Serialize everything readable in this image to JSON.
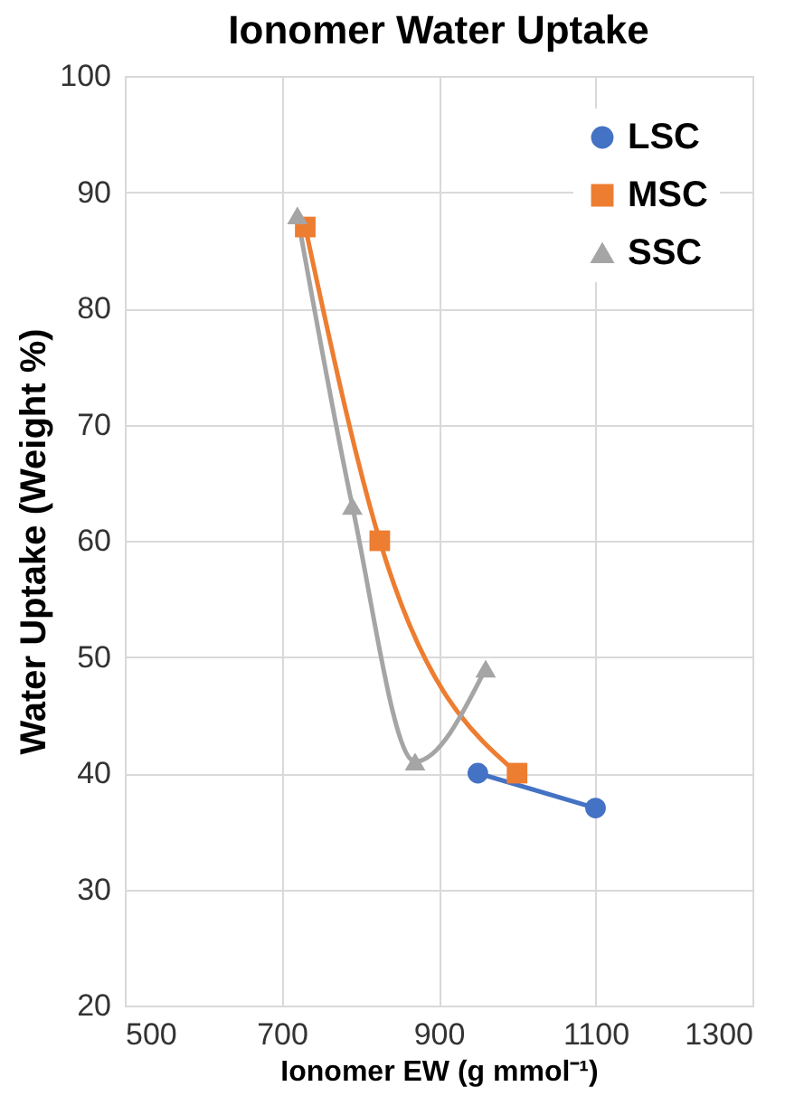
{
  "chart_data": {
    "type": "line",
    "title": "Ionomer Water Uptake",
    "xlabel": "Ionomer EW (g mmol⁻¹)",
    "ylabel": "Water Uptake (Weight %)",
    "xlim": [
      500,
      1300
    ],
    "xticks": [
      500,
      700,
      900,
      1100,
      1300
    ],
    "ylim": [
      20,
      100
    ],
    "yticks": [
      20,
      30,
      40,
      50,
      60,
      70,
      80,
      90,
      100
    ],
    "grid": true,
    "legend": "top right",
    "line_style": "solid",
    "series": [
      {
        "name": "LSC",
        "color": "#4472c4",
        "marker": "circle",
        "x": [
          950,
          1100
        ],
        "values": [
          40,
          37
        ]
      },
      {
        "name": "MSC",
        "color": "#ed7d31",
        "marker": "square",
        "x": [
          730,
          825,
          1000
        ],
        "values": [
          87,
          60,
          40
        ]
      },
      {
        "name": "SSC",
        "color": "#a5a5a5",
        "marker": "triangle",
        "x": [
          720,
          790,
          870,
          960
        ],
        "values": [
          88,
          63,
          41,
          49
        ]
      }
    ]
  }
}
